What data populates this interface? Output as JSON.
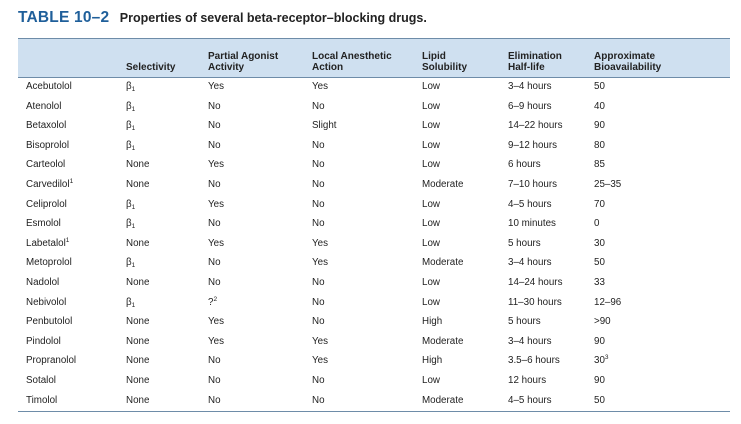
{
  "caption": {
    "label": "TABLE 10–2",
    "title": "Properties of several beta-receptor–blocking drugs."
  },
  "headers": [
    {
      "line1": "",
      "line2": ""
    },
    {
      "line1": "",
      "line2": "Selectivity"
    },
    {
      "line1": "Partial Agonist",
      "line2": "Activity"
    },
    {
      "line1": "Local Anesthetic",
      "line2": "Action"
    },
    {
      "line1": "Lipid",
      "line2": "Solubility"
    },
    {
      "line1": "Elimination",
      "line2": "Half-life"
    },
    {
      "line1": "Approximate",
      "line2": "Bioavailability"
    }
  ],
  "rows": [
    {
      "drug": "Acebutolol",
      "drug_note": "",
      "selectivity": "β",
      "selectivity_sub": "1",
      "partial_agonist": "Yes",
      "pa_note": "",
      "local_anesthetic": "Yes",
      "lipid": "Low",
      "half_life": "3–4 hours",
      "bioavailability": "50",
      "bio_note": ""
    },
    {
      "drug": "Atenolol",
      "drug_note": "",
      "selectivity": "β",
      "selectivity_sub": "1",
      "partial_agonist": "No",
      "pa_note": "",
      "local_anesthetic": "No",
      "lipid": "Low",
      "half_life": "6–9 hours",
      "bioavailability": "40",
      "bio_note": ""
    },
    {
      "drug": "Betaxolol",
      "drug_note": "",
      "selectivity": "β",
      "selectivity_sub": "1",
      "partial_agonist": "No",
      "pa_note": "",
      "local_anesthetic": "Slight",
      "lipid": "Low",
      "half_life": "14–22 hours",
      "bioavailability": "90",
      "bio_note": ""
    },
    {
      "drug": "Bisoprolol",
      "drug_note": "",
      "selectivity": "β",
      "selectivity_sub": "1",
      "partial_agonist": "No",
      "pa_note": "",
      "local_anesthetic": "No",
      "lipid": "Low",
      "half_life": "9–12 hours",
      "bioavailability": "80",
      "bio_note": ""
    },
    {
      "drug": "Carteolol",
      "drug_note": "",
      "selectivity": "None",
      "selectivity_sub": "",
      "partial_agonist": "Yes",
      "pa_note": "",
      "local_anesthetic": "No",
      "lipid": "Low",
      "half_life": "6 hours",
      "bioavailability": "85",
      "bio_note": ""
    },
    {
      "drug": "Carvedilol",
      "drug_note": "1",
      "selectivity": "None",
      "selectivity_sub": "",
      "partial_agonist": "No",
      "pa_note": "",
      "local_anesthetic": "No",
      "lipid": "Moderate",
      "half_life": "7–10 hours",
      "bioavailability": "25–35",
      "bio_note": ""
    },
    {
      "drug": "Celiprolol",
      "drug_note": "",
      "selectivity": "β",
      "selectivity_sub": "1",
      "partial_agonist": "Yes",
      "pa_note": "",
      "local_anesthetic": "No",
      "lipid": "Low",
      "half_life": "4–5 hours",
      "bioavailability": "70",
      "bio_note": ""
    },
    {
      "drug": "Esmolol",
      "drug_note": "",
      "selectivity": "β",
      "selectivity_sub": "1",
      "partial_agonist": "No",
      "pa_note": "",
      "local_anesthetic": "No",
      "lipid": "Low",
      "half_life": "10 minutes",
      "bioavailability": "0",
      "bio_note": ""
    },
    {
      "drug": "Labetalol",
      "drug_note": "1",
      "selectivity": "None",
      "selectivity_sub": "",
      "partial_agonist": "Yes",
      "pa_note": "",
      "local_anesthetic": "Yes",
      "lipid": "Low",
      "half_life": "5 hours",
      "bioavailability": "30",
      "bio_note": ""
    },
    {
      "drug": "Metoprolol",
      "drug_note": "",
      "selectivity": "β",
      "selectivity_sub": "1",
      "partial_agonist": "No",
      "pa_note": "",
      "local_anesthetic": "Yes",
      "lipid": "Moderate",
      "half_life": "3–4 hours",
      "bioavailability": "50",
      "bio_note": ""
    },
    {
      "drug": "Nadolol",
      "drug_note": "",
      "selectivity": "None",
      "selectivity_sub": "",
      "partial_agonist": "No",
      "pa_note": "",
      "local_anesthetic": "No",
      "lipid": "Low",
      "half_life": "14–24 hours",
      "bioavailability": "33",
      "bio_note": ""
    },
    {
      "drug": "Nebivolol",
      "drug_note": "",
      "selectivity": "β",
      "selectivity_sub": "1",
      "partial_agonist": "?",
      "pa_note": "2",
      "local_anesthetic": "No",
      "lipid": "Low",
      "half_life": "11–30 hours",
      "bioavailability": "12–96",
      "bio_note": ""
    },
    {
      "drug": "Penbutolol",
      "drug_note": "",
      "selectivity": "None",
      "selectivity_sub": "",
      "partial_agonist": "Yes",
      "pa_note": "",
      "local_anesthetic": "No",
      "lipid": "High",
      "half_life": "5 hours",
      "bioavailability": ">90",
      "bio_note": ""
    },
    {
      "drug": "Pindolol",
      "drug_note": "",
      "selectivity": "None",
      "selectivity_sub": "",
      "partial_agonist": "Yes",
      "pa_note": "",
      "local_anesthetic": "Yes",
      "lipid": "Moderate",
      "half_life": "3–4 hours",
      "bioavailability": "90",
      "bio_note": ""
    },
    {
      "drug": "Propranolol",
      "drug_note": "",
      "selectivity": "None",
      "selectivity_sub": "",
      "partial_agonist": "No",
      "pa_note": "",
      "local_anesthetic": "Yes",
      "lipid": "High",
      "half_life": "3.5–6 hours",
      "bioavailability": "30",
      "bio_note": "3"
    },
    {
      "drug": "Sotalol",
      "drug_note": "",
      "selectivity": "None",
      "selectivity_sub": "",
      "partial_agonist": "No",
      "pa_note": "",
      "local_anesthetic": "No",
      "lipid": "Low",
      "half_life": "12 hours",
      "bioavailability": "90",
      "bio_note": ""
    },
    {
      "drug": "Timolol",
      "drug_note": "",
      "selectivity": "None",
      "selectivity_sub": "",
      "partial_agonist": "No",
      "pa_note": "",
      "local_anesthetic": "No",
      "lipid": "Moderate",
      "half_life": "4–5 hours",
      "bioavailability": "50",
      "bio_note": ""
    }
  ],
  "footnote": {
    "marker": "1",
    "text": ""
  },
  "colors": {
    "caption": "#1f5f9a",
    "header_bg": "#cfe0f0",
    "rule": "#6e8ca8",
    "text": "#222222"
  }
}
